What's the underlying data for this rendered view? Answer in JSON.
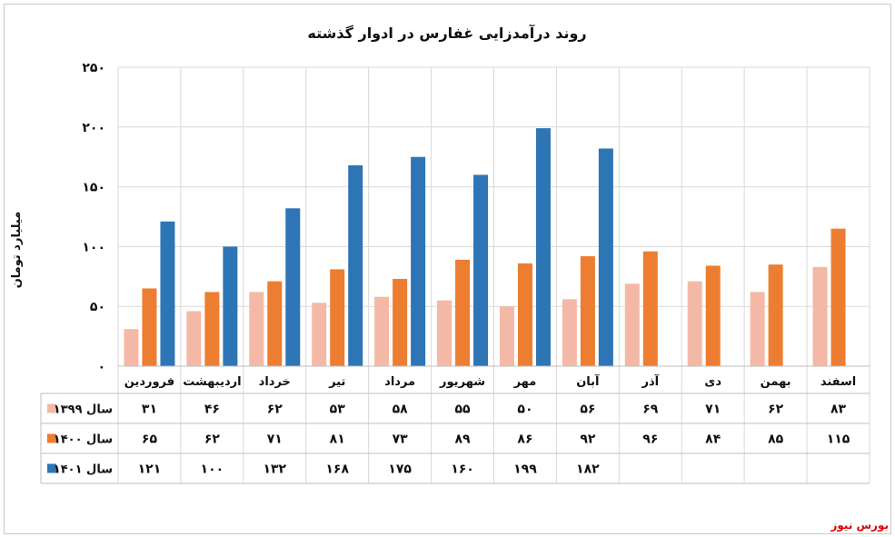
{
  "chart_data": {
    "type": "bar",
    "title": "روند درآمدزایی غفارس در ادوار گذشته",
    "ylabel": "میلیارد تومان",
    "ylim": [
      0,
      250
    ],
    "yticks": [
      {
        "value": 0,
        "label": "۰"
      },
      {
        "value": 50,
        "label": "۵۰"
      },
      {
        "value": 100,
        "label": "۱۰۰"
      },
      {
        "value": 150,
        "label": "۱۵۰"
      },
      {
        "value": 200,
        "label": "۲۰۰"
      },
      {
        "value": 250,
        "label": "۲۵۰"
      }
    ],
    "grid": true,
    "categories": [
      "فروردین",
      "اردیبهشت",
      "خرداد",
      "تیر",
      "مرداد",
      "شهریور",
      "مهر",
      "آبان",
      "آذر",
      "دی",
      "بهمن",
      "اسفند"
    ],
    "series": [
      {
        "name": "سال ۱۳۹۹",
        "color": "#f4b9a6",
        "values": [
          31,
          46,
          62,
          53,
          58,
          55,
          50,
          56,
          69,
          71,
          62,
          83
        ],
        "labels": [
          "۳۱",
          "۴۶",
          "۶۲",
          "۵۳",
          "۵۸",
          "۵۵",
          "۵۰",
          "۵۶",
          "۶۹",
          "۷۱",
          "۶۲",
          "۸۳"
        ]
      },
      {
        "name": "سال ۱۴۰۰",
        "color": "#ed7d31",
        "values": [
          65,
          62,
          71,
          81,
          73,
          89,
          86,
          92,
          96,
          84,
          85,
          115
        ],
        "labels": [
          "۶۵",
          "۶۲",
          "۷۱",
          "۸۱",
          "۷۳",
          "۸۹",
          "۸۶",
          "۹۲",
          "۹۶",
          "۸۴",
          "۸۵",
          "۱۱۵"
        ]
      },
      {
        "name": "سال ۱۴۰۱",
        "color": "#2e75b6",
        "values": [
          121,
          100,
          132,
          168,
          175,
          160,
          199,
          182,
          null,
          null,
          null,
          null
        ],
        "labels": [
          "۱۲۱",
          "۱۰۰",
          "۱۳۲",
          "۱۶۸",
          "۱۷۵",
          "۱۶۰",
          "۱۹۹",
          "۱۸۲",
          "",
          "",
          "",
          ""
        ]
      }
    ]
  },
  "source": "بورس نیوز"
}
